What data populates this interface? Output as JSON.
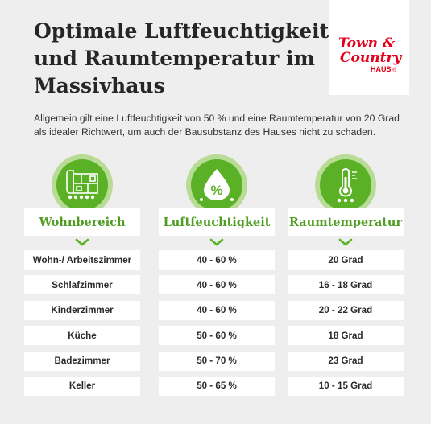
{
  "title": {
    "line1": "Optimale Luftfeuchtigkeit",
    "line2": "und Raumtemperatur im",
    "line3": "Massivhaus"
  },
  "logo": {
    "line1": "Town &",
    "line2": "Country",
    "line3": "HAUS",
    "registered": "®",
    "color": "#e2001a"
  },
  "intro": "Allgemein gilt eine Luftfeuchtigkeit von 50 % und eine Raumtemperatur von 20 Grad als idealer Richtwert, um auch der Bausubstanz des Hauses nicht zu schaden.",
  "accent_color": "#5bb125",
  "columns": [
    {
      "icon": "floorplan-icon",
      "header": "Wohnbereich",
      "cells": [
        "Wohn-/ Arbeitszimmer",
        "Schlafzimmer",
        "Kinderzimmer",
        "Küche",
        "Badezimmer",
        "Keller"
      ]
    },
    {
      "icon": "humidity-drop-icon",
      "icon_text": "%",
      "header": "Luftfeuchtigkeit",
      "cells": [
        "40 - 60 %",
        "40 - 60 %",
        "40 - 60 %",
        "50 - 60 %",
        "50 - 70 %",
        "50 - 65 %"
      ]
    },
    {
      "icon": "thermometer-icon",
      "header": "Raumtemperatur",
      "cells": [
        "20 Grad",
        "16 - 18 Grad",
        "20 - 22 Grad",
        "18 Grad",
        "23 Grad",
        "10 - 15 Grad"
      ]
    }
  ]
}
